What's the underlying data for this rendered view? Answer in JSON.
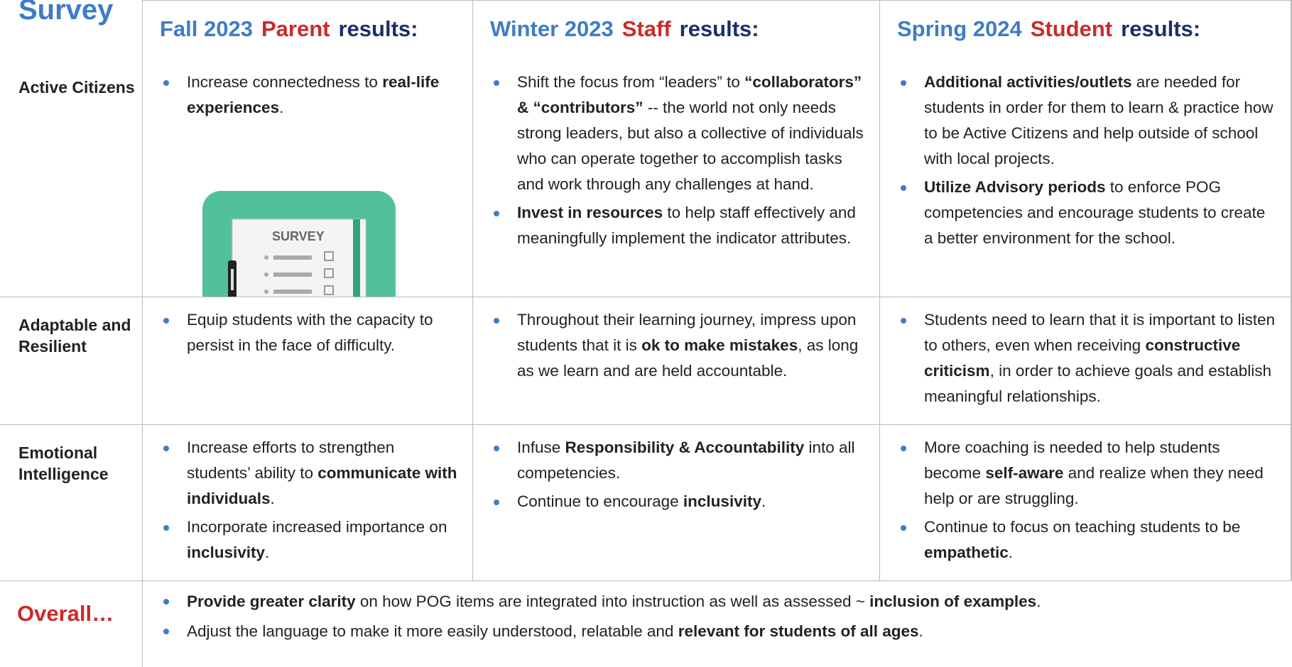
{
  "header": {
    "corner": "Survey",
    "columns": [
      {
        "season": "Fall 2023",
        "group": "Parent",
        "suffix": "results:"
      },
      {
        "season": "Winter 2023",
        "group": "Staff",
        "suffix": "results:"
      },
      {
        "season": "Spring 2024",
        "group": "Student",
        "suffix": "results:"
      }
    ]
  },
  "image": {
    "label": "SURVEY"
  },
  "rows": [
    {
      "label": "Active Citizens",
      "cells": [
        [
          [
            {
              "text": "Increase connectedness to ",
              "bold": false
            },
            {
              "text": "real-life experiences",
              "bold": true
            },
            {
              "text": ".",
              "bold": false
            }
          ]
        ],
        [
          [
            {
              "text": "Shift the focus from “leaders” to ",
              "bold": false
            },
            {
              "text": "“collaborators” & “contributors”",
              "bold": true
            },
            {
              "text": " -- the world not only needs strong leaders, but also a collective of individuals who can operate together to accomplish tasks and work through any challenges at hand.",
              "bold": false
            }
          ],
          [
            {
              "text": "Invest in resources",
              "bold": true
            },
            {
              "text": " to help staff effectively and meaningfully implement the indicator attributes.",
              "bold": false
            }
          ]
        ],
        [
          [
            {
              "text": "Additional activities/outlets",
              "bold": true
            },
            {
              "text": " are needed for students in order for them to learn & practice how to be Active Citizens and help outside of school with local projects.",
              "bold": false
            }
          ],
          [
            {
              "text": "Utilize Advisory periods",
              "bold": true
            },
            {
              "text": " to enforce POG competencies and encourage students to create a better environment for the school.",
              "bold": false
            }
          ]
        ]
      ]
    },
    {
      "label": "Adaptable and Resilient",
      "cells": [
        [
          [
            {
              "text": "Equip students with the capacity to persist in the face of difficulty.",
              "bold": false
            }
          ]
        ],
        [
          [
            {
              "text": "Throughout their learning journey, impress upon students that it is ",
              "bold": false
            },
            {
              "text": "ok to make mistakes",
              "bold": true
            },
            {
              "text": ", as long as we learn and are held accountable.",
              "bold": false
            }
          ]
        ],
        [
          [
            {
              "text": "Students need to learn that it is important to listen to others, even when receiving ",
              "bold": false
            },
            {
              "text": "constructive criticism",
              "bold": true
            },
            {
              "text": ", in order to achieve goals and establish meaningful relationships.",
              "bold": false
            }
          ]
        ]
      ]
    },
    {
      "label": "Emotional Intelligence",
      "cells": [
        [
          [
            {
              "text": "Increase efforts to strengthen students’ ability to ",
              "bold": false
            },
            {
              "text": "communicate with individuals",
              "bold": true
            },
            {
              "text": ".",
              "bold": false
            }
          ],
          [
            {
              "text": "Incorporate increased importance on ",
              "bold": false
            },
            {
              "text": "inclusivity",
              "bold": true
            },
            {
              "text": ".",
              "bold": false
            }
          ]
        ],
        [
          [
            {
              "text": "Infuse ",
              "bold": false
            },
            {
              "text": "Responsibility & Accountability",
              "bold": true
            },
            {
              "text": " into all competencies.",
              "bold": false
            }
          ],
          [
            {
              "text": "Continue to encourage ",
              "bold": false
            },
            {
              "text": "inclusivity",
              "bold": true
            },
            {
              "text": ".",
              "bold": false
            }
          ]
        ],
        [
          [
            {
              "text": "More coaching is needed to help students become ",
              "bold": false
            },
            {
              "text": "self-aware",
              "bold": true
            },
            {
              "text": " and realize when they need help or are struggling.",
              "bold": false
            }
          ],
          [
            {
              "text": "Continue to focus on teaching students to be ",
              "bold": false
            },
            {
              "text": "empathetic",
              "bold": true
            },
            {
              "text": ".",
              "bold": false
            }
          ]
        ]
      ]
    }
  ],
  "overall": {
    "label": "Overall…",
    "bullets": [
      [
        {
          "text": "Provide greater clarity",
          "bold": true
        },
        {
          "text": " on how POG items are integrated into instruction as well as assessed ~ ",
          "bold": false
        },
        {
          "text": "inclusion of examples",
          "bold": true
        },
        {
          "text": ".",
          "bold": false
        }
      ],
      [
        {
          "text": "Adjust the language to make it more easily understood, relatable and ",
          "bold": false
        },
        {
          "text": "relevant for students of all ages",
          "bold": true
        },
        {
          "text": ".",
          "bold": false
        }
      ]
    ]
  }
}
